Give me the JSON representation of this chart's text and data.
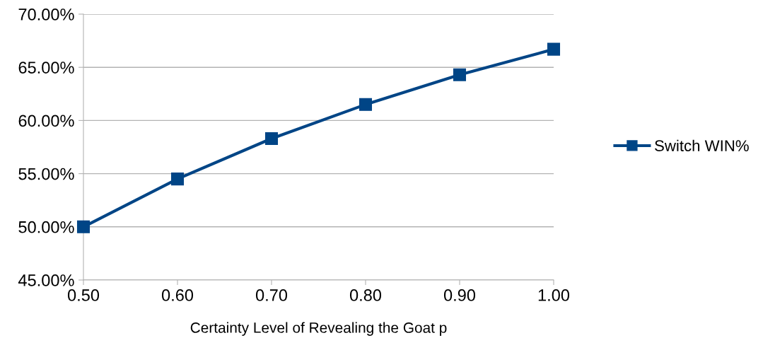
{
  "chart_data": {
    "type": "line",
    "xlabel": "Certainty Level of Revealing the Goat p",
    "x": [
      0.5,
      0.6,
      0.7,
      0.8,
      0.9,
      1.0
    ],
    "series": [
      {
        "name": "Switch WIN%",
        "color": "#004586",
        "values": [
          50.0,
          54.5,
          58.3,
          61.5,
          64.3,
          66.7
        ]
      }
    ],
    "xlim": [
      0.5,
      1.0
    ],
    "xticks": [
      {
        "value": 0.5,
        "label": "0.50"
      },
      {
        "value": 0.6,
        "label": "0.60"
      },
      {
        "value": 0.7,
        "label": "0.70"
      },
      {
        "value": 0.8,
        "label": "0.80"
      },
      {
        "value": 0.9,
        "label": "0.90"
      },
      {
        "value": 1.0,
        "label": "1.00"
      }
    ],
    "ylim": [
      45,
      70
    ],
    "yticks": [
      {
        "value": 45,
        "label": "45.00%"
      },
      {
        "value": 50,
        "label": "50.00%"
      },
      {
        "value": 55,
        "label": "55.00%"
      },
      {
        "value": 60,
        "label": "60.00%"
      },
      {
        "value": 65,
        "label": "65.00%"
      },
      {
        "value": 70,
        "label": "70.00%"
      }
    ],
    "grid": "y",
    "legend": "right",
    "marker": "square",
    "line_style": "solid"
  }
}
